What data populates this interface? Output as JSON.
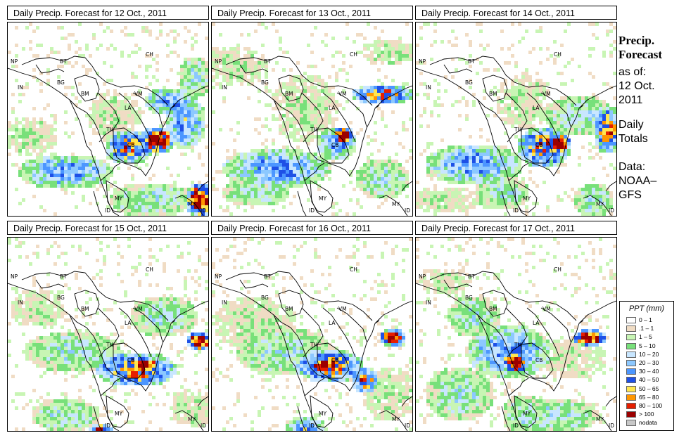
{
  "panels": [
    {
      "title": "Daily Precip. Forecast for  12 Oct., 2011",
      "day": 12
    },
    {
      "title": "Daily Precip. Forecast for  13 Oct., 2011",
      "day": 13
    },
    {
      "title": "Daily Precip. Forecast for  14 Oct., 2011",
      "day": 14
    },
    {
      "title": "Daily Precip. Forecast for  15 Oct., 2011",
      "day": 15
    },
    {
      "title": "Daily Precip. Forecast for  16 Oct., 2011",
      "day": 16
    },
    {
      "title": "Daily Precip. Forecast for  17 Oct., 2011",
      "day": 17
    }
  ],
  "map_labels": [
    "NP",
    "BT",
    "IN",
    "BG",
    "BM",
    "CH",
    "VM",
    "LA",
    "TH",
    "CB",
    "MY",
    "ID",
    "MY",
    "ID"
  ],
  "side": {
    "title_line1": "Precip.",
    "title_line2": "Forecast",
    "asof": "as of:",
    "date1": "12 Oct.",
    "date2": "2011",
    "daily1": "Daily",
    "daily2": "Totals",
    "data1": "Data:",
    "data2": "NOAA–",
    "data3": "GFS"
  },
  "legend": {
    "title": "PPT (mm)",
    "items": [
      {
        "label": "0 – 1",
        "color": "#ffffff"
      },
      {
        "label": ".1 – 1",
        "color": "#f0dcc4"
      },
      {
        "label": "1 – 5",
        "color": "#c8f5b4"
      },
      {
        "label": "5 – 10",
        "color": "#78e07a"
      },
      {
        "label": "10 – 20",
        "color": "#c8e6ff"
      },
      {
        "label": "20 – 30",
        "color": "#8cc8ff"
      },
      {
        "label": "30 – 40",
        "color": "#4c96ff"
      },
      {
        "label": "40 – 50",
        "color": "#1e50e6"
      },
      {
        "label": "50 – 65",
        "color": "#ffe650"
      },
      {
        "label": "65 – 80",
        "color": "#ff9600"
      },
      {
        "label": "80 – 100",
        "color": "#e61e00"
      },
      {
        "label": "> 100",
        "color": "#9b0000"
      },
      {
        "label": "nodata",
        "color": "#c8c8c8"
      }
    ]
  }
}
